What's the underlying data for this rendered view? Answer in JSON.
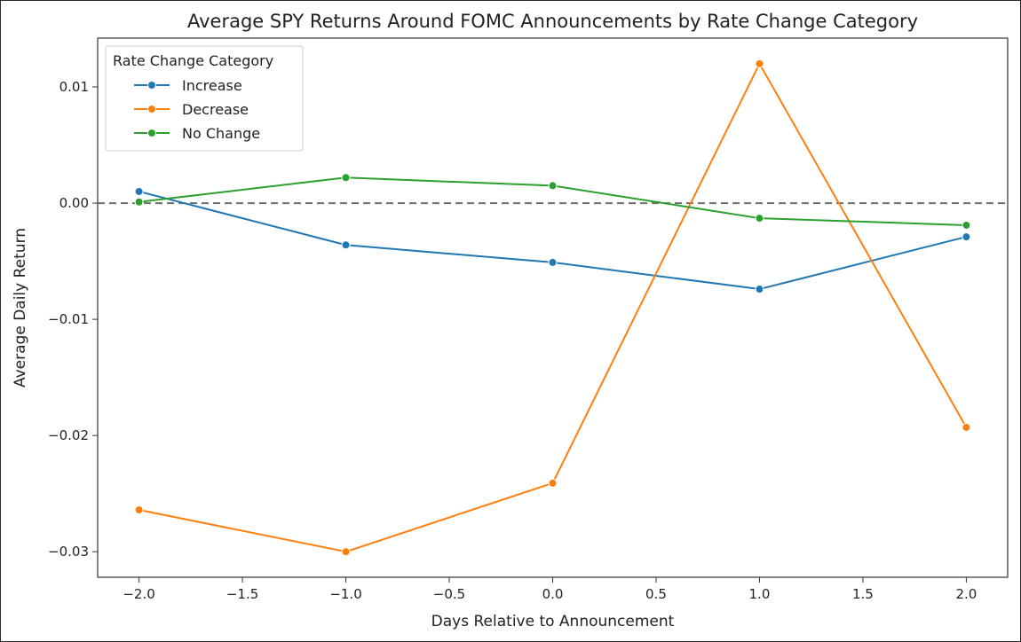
{
  "chart_data": {
    "type": "line",
    "title": "Average SPY Returns Around FOMC Announcements by Rate Change Category",
    "xlabel": "Days Relative to Announcement",
    "ylabel": "Average Daily Return",
    "xlim": [
      -2.2,
      2.2
    ],
    "ylim": [
      -0.0322,
      0.0142
    ],
    "x_ticks": [
      -2.0,
      -1.5,
      -1.0,
      -0.5,
      0.0,
      0.5,
      1.0,
      1.5,
      2.0
    ],
    "x_tick_labels": [
      "−2.0",
      "−1.5",
      "−1.0",
      "−0.5",
      "0.0",
      "0.5",
      "1.0",
      "1.5",
      "2.0"
    ],
    "y_ticks": [
      0.01,
      0.0,
      -0.01,
      -0.02,
      -0.03
    ],
    "y_tick_labels": [
      "0.01",
      "0.00",
      "−0.01",
      "−0.02",
      "−0.03"
    ],
    "x": [
      -2,
      -1,
      0,
      1,
      2
    ],
    "reference_line": {
      "y": 0.0,
      "style": "dashed",
      "color": "#6e6e6e"
    },
    "legend": {
      "title": "Rate Change Category",
      "placement": "top-left"
    },
    "series": [
      {
        "name": "Increase",
        "color": "#1f77b4",
        "values": [
          0.001,
          -0.0036,
          -0.0051,
          -0.0074,
          -0.0029
        ]
      },
      {
        "name": "Decrease",
        "color": "#ff7f0e",
        "values": [
          -0.0264,
          -0.03,
          -0.0241,
          0.012,
          -0.0193
        ]
      },
      {
        "name": "No Change",
        "color": "#2ca02c",
        "values": [
          0.0001,
          0.0022,
          0.0015,
          -0.0013,
          -0.0019
        ]
      }
    ],
    "grid": false
  }
}
